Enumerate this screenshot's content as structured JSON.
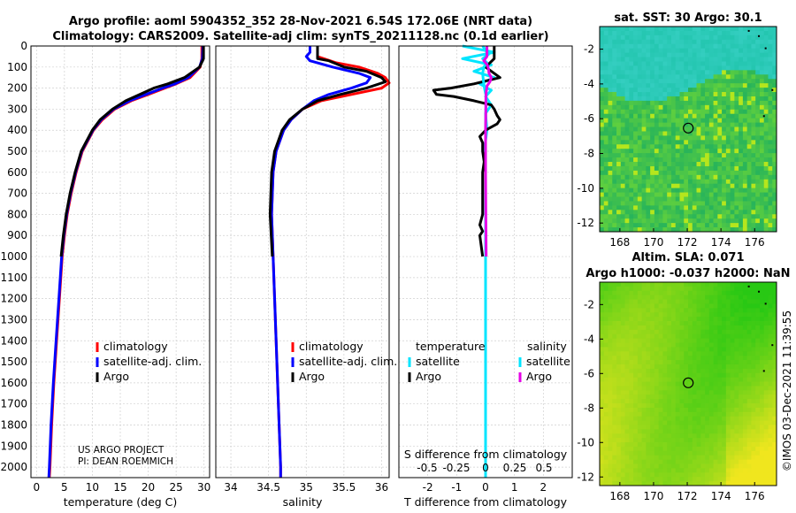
{
  "title": {
    "line1": "Argo profile: aoml 5904352_352 28-Nov-2021 6.54S 172.06E (NRT data)",
    "line2": "Climatology: CARS2009. Satellite-adj clim: synTS_20211128.nc (0.1d earlier)"
  },
  "colors": {
    "climatology": "#ff0000",
    "satellite": "#0000ff",
    "argo": "#000000",
    "sat_t": "#00e5ff",
    "sat_s": "#00e5ff",
    "argo_s": "#e600e6"
  },
  "footnote": {
    "line1": "US ARGO PROJECT",
    "line2": "PI: DEAN ROEMMICH"
  },
  "watermark": "©IMOS 03-Dec-2021 11:39:55",
  "chart_data": [
    {
      "type": "line",
      "name": "temperature",
      "xlabel": "temperature (deg C)",
      "ylabel": "",
      "xlim": [
        -1,
        31
      ],
      "ylim": [
        2050,
        0
      ],
      "xticks": [
        0,
        5,
        10,
        15,
        20,
        25,
        30
      ],
      "xticklabels": [
        "0",
        "5",
        "10",
        "15",
        "20",
        "25",
        "30"
      ],
      "yticks": [
        0,
        100,
        200,
        300,
        400,
        500,
        600,
        700,
        800,
        900,
        1000,
        1100,
        1200,
        1300,
        1400,
        1500,
        1600,
        1700,
        1800,
        1900,
        2000
      ],
      "legend": [
        "climatology",
        "satellite-adj. clim.",
        "Argo"
      ],
      "series": [
        {
          "name": "climatology",
          "depth": [
            0,
            60,
            100,
            150,
            180,
            200,
            230,
            260,
            300,
            350,
            400,
            500,
            600,
            700,
            800,
            900,
            1000,
            1200,
            1400,
            1600,
            1800,
            2000,
            2050
          ],
          "values": [
            29.6,
            29.6,
            29.3,
            27.5,
            25,
            23,
            20,
            17,
            14,
            11.8,
            10.2,
            8.2,
            7.1,
            6.2,
            5.5,
            5,
            4.6,
            4.1,
            3.6,
            3.1,
            2.7,
            2.4,
            2.3
          ]
        },
        {
          "name": "satellite",
          "depth": [
            0,
            60,
            100,
            150,
            180,
            200,
            230,
            260,
            300,
            350,
            400,
            500,
            600,
            700,
            800,
            900,
            1000,
            1200,
            1400,
            1600,
            1800,
            2000,
            2050
          ],
          "values": [
            29.8,
            29.7,
            29.2,
            27.2,
            24.8,
            22.6,
            19.6,
            16.7,
            13.8,
            11.6,
            10.1,
            8.1,
            7.0,
            6.1,
            5.4,
            4.9,
            4.5,
            4.0,
            3.5,
            3.0,
            2.6,
            2.3,
            2.2
          ]
        },
        {
          "name": "Argo",
          "depth": [
            0,
            60,
            100,
            150,
            180,
            200,
            230,
            260,
            300,
            350,
            400,
            500,
            600,
            700,
            800,
            900,
            1000
          ],
          "values": [
            29.9,
            29.9,
            29.2,
            26.5,
            23.5,
            21,
            18.5,
            16,
            13.6,
            11.4,
            10.0,
            8.0,
            6.9,
            6.0,
            5.3,
            4.8,
            4.4
          ]
        }
      ]
    },
    {
      "type": "line",
      "name": "salinity",
      "xlabel": "salinity",
      "ylabel": "",
      "xlim": [
        33.8,
        36.1
      ],
      "ylim": [
        2050,
        0
      ],
      "xticks": [
        34,
        34.5,
        35,
        35.5,
        36
      ],
      "xticklabels": [
        "34",
        "34.5",
        "35",
        "35.5",
        "36"
      ],
      "legend": [
        "climatology",
        "satellite-adj. clim.",
        "Argo"
      ],
      "series": [
        {
          "name": "climatology",
          "depth": [
            0,
            50,
            80,
            100,
            130,
            150,
            175,
            200,
            230,
            260,
            300,
            350,
            400,
            500,
            600,
            800,
            1000,
            1200,
            1400,
            1600,
            1800,
            2000,
            2050
          ],
          "values": [
            35.15,
            35.15,
            35.4,
            35.7,
            35.95,
            36.05,
            36.1,
            36.0,
            35.6,
            35.2,
            34.95,
            34.8,
            34.7,
            34.6,
            34.56,
            34.54,
            34.56,
            34.58,
            34.6,
            34.62,
            34.64,
            34.66,
            34.66
          ]
        },
        {
          "name": "satellite",
          "depth": [
            0,
            30,
            50,
            70,
            100,
            130,
            150,
            175,
            200,
            230,
            260,
            300,
            350,
            400,
            500,
            600,
            800,
            1000,
            1200,
            1400,
            1600,
            1800,
            2000,
            2050
          ],
          "values": [
            35.05,
            35.05,
            35.0,
            35.05,
            35.35,
            35.7,
            35.85,
            35.8,
            35.6,
            35.3,
            35.1,
            34.95,
            34.8,
            34.7,
            34.6,
            34.56,
            34.54,
            34.56,
            34.58,
            34.6,
            34.62,
            34.64,
            34.66,
            34.66
          ]
        },
        {
          "name": "Argo",
          "depth": [
            0,
            60,
            70,
            100,
            120,
            150,
            170,
            200,
            230,
            260,
            300,
            350,
            400,
            500,
            600,
            800,
            1000
          ],
          "values": [
            35.15,
            35.15,
            35.3,
            35.5,
            35.8,
            36.0,
            36.05,
            35.8,
            35.45,
            35.15,
            34.95,
            34.78,
            34.68,
            34.58,
            34.54,
            34.52,
            34.55
          ]
        }
      ]
    },
    {
      "type": "line",
      "name": "difference",
      "xlabel": "T difference from climatology",
      "x2label": "S difference from climatology",
      "xlim": [
        -3,
        3
      ],
      "ylim": [
        2050,
        0
      ],
      "xticks": [
        -2,
        -1,
        0,
        1,
        2
      ],
      "xticklabels": [
        "-2",
        "-1",
        "0",
        "1",
        "2"
      ],
      "x2ticks": [
        -0.5,
        -0.25,
        0,
        0.25,
        0.5
      ],
      "x2ticklabels": [
        "-0.5",
        "-0.25",
        "0",
        "0.25",
        "0.5"
      ],
      "legend_title_t": "temperature",
      "legend_title_s": "salinity",
      "legend_t": [
        "satellite",
        "Argo"
      ],
      "legend_s": [
        "satellite",
        "Argo"
      ],
      "series": [
        {
          "name": "T satellite",
          "depth": [
            0,
            30,
            60,
            90,
            120,
            150,
            180,
            210,
            240,
            280,
            320,
            400,
            500,
            600,
            800,
            1000,
            1500,
            2000,
            2050
          ],
          "values": [
            -0.8,
            0.3,
            -0.8,
            0.2,
            -0.4,
            0.3,
            -0.2,
            0.2,
            0,
            0.2,
            0,
            0.05,
            -0.05,
            0,
            0,
            0,
            0,
            0,
            0
          ]
        },
        {
          "name": "T Argo",
          "depth": [
            0,
            60,
            100,
            150,
            180,
            200,
            210,
            230,
            240,
            260,
            280,
            300,
            330,
            350,
            370,
            400,
            430,
            460,
            500,
            550,
            600,
            700,
            800,
            850,
            880,
            900,
            950,
            1000
          ],
          "values": [
            0.3,
            0.3,
            0,
            0.5,
            -0.4,
            -1.2,
            -1.8,
            -1.7,
            -1.1,
            -0.4,
            0.2,
            0.3,
            0.4,
            0.5,
            0.4,
            0,
            -0.2,
            -0.1,
            -0.1,
            -0.05,
            -0.1,
            -0.1,
            -0.1,
            -0.2,
            -0.1,
            -0.2,
            -0.15,
            -0.1
          ]
        },
        {
          "name": "S satellite",
          "depth": [
            0,
            40,
            60,
            80,
            100,
            130,
            160,
            200,
            240,
            300,
            400,
            600,
            1000,
            2000,
            2050
          ],
          "values": [
            -0.1,
            0.1,
            -0.1,
            0.05,
            -0.06,
            -0.1,
            -0.08,
            -0.04,
            0.02,
            0.01,
            0,
            0,
            0,
            0,
            0
          ]
        },
        {
          "name": "S Argo",
          "depth": [
            0,
            50,
            70,
            90,
            110,
            130,
            150,
            170,
            190,
            220,
            250,
            300,
            400,
            600,
            800,
            1000
          ],
          "values": [
            0.05,
            0.05,
            -0.06,
            0.06,
            0.1,
            0.12,
            0.2,
            0.15,
            0.05,
            0.02,
            0.01,
            0.01,
            0,
            0,
            0.01,
            0.02
          ]
        }
      ]
    },
    {
      "type": "heatmap",
      "name": "sst_map",
      "title": "sat. SST: 30 Argo: 30.1",
      "xticks": [
        168,
        170,
        172,
        174,
        176
      ],
      "xticklabels": [
        "168",
        "170",
        "172",
        "174",
        "176"
      ],
      "yticks": [
        -2,
        -4,
        -6,
        -8,
        -10,
        -12
      ],
      "yticklabels": [
        "-2",
        "-4",
        "-6",
        "-8",
        "-10",
        "-12"
      ],
      "xlim": [
        166.8,
        177.3
      ],
      "ylim": [
        -12.5,
        -0.7
      ],
      "float_position": [
        172.06,
        -6.54
      ]
    },
    {
      "type": "heatmap",
      "name": "sla_map",
      "title": "Altim. SLA: 0.071",
      "subtitle": "Argo h1000: -0.037 h2000: NaN",
      "xticks": [
        168,
        170,
        172,
        174,
        176
      ],
      "xticklabels": [
        "168",
        "170",
        "172",
        "174",
        "176"
      ],
      "yticks": [
        -2,
        -4,
        -6,
        -8,
        -10,
        -12
      ],
      "yticklabels": [
        "-2",
        "-4",
        "-6",
        "-8",
        "-10",
        "-12"
      ],
      "xlim": [
        166.8,
        177.3
      ],
      "ylim": [
        -12.5,
        -0.7
      ],
      "float_position": [
        172.06,
        -6.54
      ]
    }
  ]
}
